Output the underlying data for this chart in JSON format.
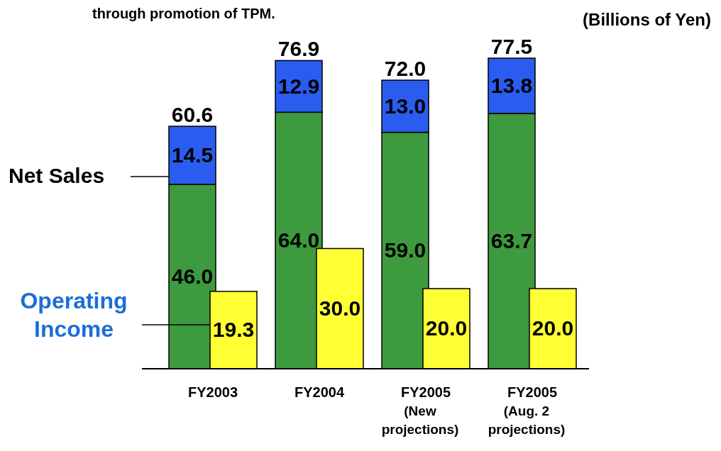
{
  "chart_data": {
    "type": "bar",
    "title": "through promotion of TPM.",
    "categories": [
      "FY2003",
      "FY2004",
      "FY2005\n(New\nprojections)",
      "FY2005\n(Aug. 2\nprojections)"
    ],
    "stacked": true,
    "series": [
      {
        "color": "#3e9a3e",
        "values": [
          46.0,
          64.0,
          59.0,
          63.7
        ],
        "value_labels": [
          "46.0",
          "64.0",
          "59.0",
          "63.7"
        ]
      },
      {
        "color": "#2a5cf0",
        "values": [
          14.5,
          12.9,
          13.0,
          13.8
        ],
        "value_labels": [
          "14.5",
          "12.9",
          "13.0",
          "13.8"
        ]
      },
      {
        "name": "Operating Income",
        "color": "#ffff33",
        "axis": "y2",
        "values": [
          19.3,
          30.0,
          20.0,
          20.0
        ],
        "value_labels": [
          "19.3",
          "30.0",
          "20.0",
          "20.0"
        ]
      }
    ],
    "annotations": [
      "(Billions of Yen)",
      "Net Sales",
      {
        "text": "60.6",
        "x": "FY2003",
        "y": 60.6
      },
      {
        "text": "76.9",
        "x": "FY2004",
        "y": 76.9
      },
      {
        "text": "72.0",
        "x": "FY2005\n(New\nprojections)",
        "y": 72.0
      },
      {
        "text": "77.5",
        "x": "FY2005\n(Aug. 2\nprojections)",
        "y": 77.5
      }
    ]
  }
}
